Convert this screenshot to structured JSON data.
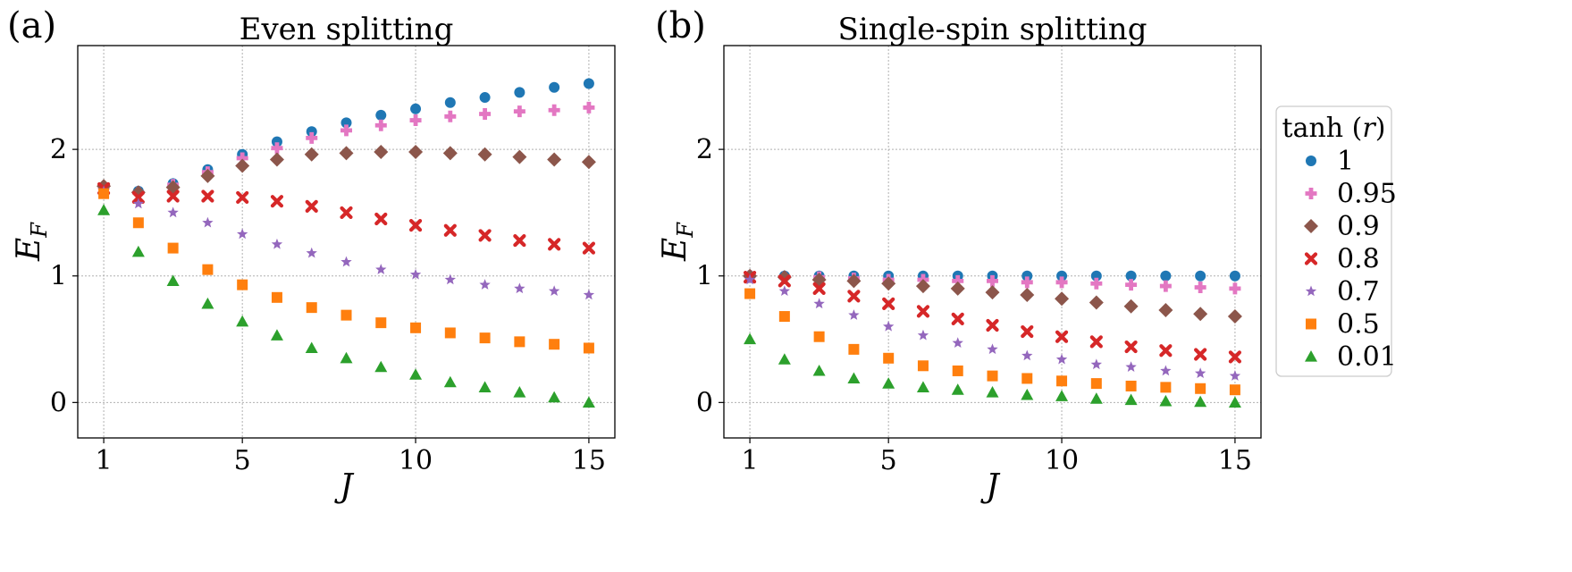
{
  "chart_data": [
    {
      "type": "scatter",
      "panel_label": "(a)",
      "title": "Even splitting",
      "xlabel": "J",
      "ylabel": "E_F",
      "xlim": [
        0.25,
        15.75
      ],
      "ylim": [
        -0.28,
        2.82
      ],
      "xticks": [
        1,
        5,
        10,
        15
      ],
      "yticks": [
        0,
        1,
        2
      ],
      "grid": true,
      "x": [
        1,
        2,
        3,
        4,
        5,
        6,
        7,
        8,
        9,
        10,
        11,
        12,
        13,
        14,
        15
      ],
      "series": [
        {
          "name": "1",
          "color": "#1f77b4",
          "marker": "circle",
          "values": [
            1.7,
            1.67,
            1.73,
            1.84,
            1.96,
            2.06,
            2.14,
            2.21,
            2.27,
            2.32,
            2.37,
            2.41,
            2.45,
            2.49,
            2.52
          ]
        },
        {
          "name": "0.95",
          "color": "#e377c2",
          "marker": "plus",
          "values": [
            1.7,
            1.66,
            1.72,
            1.82,
            1.93,
            2.01,
            2.09,
            2.15,
            2.19,
            2.23,
            2.26,
            2.28,
            2.3,
            2.31,
            2.33
          ]
        },
        {
          "name": "0.9",
          "color": "#8c564b",
          "marker": "diamond",
          "values": [
            1.71,
            1.66,
            1.7,
            1.79,
            1.87,
            1.92,
            1.96,
            1.97,
            1.98,
            1.98,
            1.97,
            1.96,
            1.94,
            1.92,
            1.9
          ]
        },
        {
          "name": "0.8",
          "color": "#d62728",
          "marker": "x",
          "values": [
            1.69,
            1.62,
            1.63,
            1.63,
            1.62,
            1.59,
            1.55,
            1.5,
            1.45,
            1.4,
            1.36,
            1.32,
            1.28,
            1.25,
            1.22
          ]
        },
        {
          "name": "0.7",
          "color": "#9467bd",
          "marker": "star",
          "values": [
            1.67,
            1.57,
            1.5,
            1.42,
            1.33,
            1.25,
            1.18,
            1.11,
            1.05,
            1.01,
            0.97,
            0.93,
            0.9,
            0.88,
            0.85
          ]
        },
        {
          "name": "0.5",
          "color": "#ff7f0e",
          "marker": "square",
          "values": [
            1.65,
            1.42,
            1.22,
            1.05,
            0.93,
            0.83,
            0.75,
            0.69,
            0.63,
            0.59,
            0.55,
            0.51,
            0.48,
            0.46,
            0.43
          ]
        },
        {
          "name": "0.01",
          "color": "#2ca02c",
          "marker": "triangle",
          "values": [
            1.52,
            1.19,
            0.96,
            0.78,
            0.64,
            0.53,
            0.43,
            0.35,
            0.28,
            0.22,
            0.16,
            0.12,
            0.08,
            0.04,
            0.0
          ]
        }
      ]
    },
    {
      "type": "scatter",
      "panel_label": "(b)",
      "title": "Single-spin splitting",
      "xlabel": "J",
      "ylabel": "E_F",
      "xlim": [
        0.25,
        15.75
      ],
      "ylim": [
        -0.28,
        2.82
      ],
      "xticks": [
        1,
        5,
        10,
        15
      ],
      "yticks": [
        0,
        1,
        2
      ],
      "grid": true,
      "x": [
        1,
        2,
        3,
        4,
        5,
        6,
        7,
        8,
        9,
        10,
        11,
        12,
        13,
        14,
        15
      ],
      "series": [
        {
          "name": "1",
          "color": "#1f77b4",
          "marker": "circle",
          "values": [
            1.0,
            1.0,
            1.0,
            1.0,
            1.0,
            1.0,
            1.0,
            1.0,
            1.0,
            1.0,
            1.0,
            1.0,
            1.0,
            1.0,
            1.0
          ]
        },
        {
          "name": "0.95",
          "color": "#e377c2",
          "marker": "plus",
          "values": [
            1.0,
            0.99,
            0.99,
            0.98,
            0.97,
            0.97,
            0.96,
            0.96,
            0.95,
            0.95,
            0.94,
            0.93,
            0.92,
            0.91,
            0.9
          ]
        },
        {
          "name": "0.9",
          "color": "#8c564b",
          "marker": "diamond",
          "values": [
            1.0,
            0.99,
            0.97,
            0.96,
            0.94,
            0.92,
            0.9,
            0.87,
            0.85,
            0.82,
            0.79,
            0.76,
            0.73,
            0.7,
            0.68
          ]
        },
        {
          "name": "0.8",
          "color": "#d62728",
          "marker": "x",
          "values": [
            0.99,
            0.96,
            0.9,
            0.84,
            0.78,
            0.72,
            0.66,
            0.61,
            0.56,
            0.52,
            0.48,
            0.44,
            0.41,
            0.38,
            0.36
          ]
        },
        {
          "name": "0.7",
          "color": "#9467bd",
          "marker": "star",
          "values": [
            0.97,
            0.88,
            0.78,
            0.69,
            0.6,
            0.53,
            0.47,
            0.42,
            0.37,
            0.34,
            0.3,
            0.28,
            0.25,
            0.23,
            0.21
          ]
        },
        {
          "name": "0.5",
          "color": "#ff7f0e",
          "marker": "square",
          "values": [
            0.86,
            0.68,
            0.52,
            0.42,
            0.35,
            0.29,
            0.25,
            0.21,
            0.19,
            0.17,
            0.15,
            0.13,
            0.12,
            0.11,
            0.1
          ]
        },
        {
          "name": "0.01",
          "color": "#2ca02c",
          "marker": "triangle",
          "values": [
            0.5,
            0.34,
            0.25,
            0.19,
            0.15,
            0.12,
            0.1,
            0.08,
            0.06,
            0.05,
            0.03,
            0.02,
            0.01,
            0.005,
            0.0
          ]
        }
      ]
    }
  ],
  "legend": {
    "title": "tanh (r)",
    "placement": "right",
    "entries": [
      {
        "label": "1",
        "color": "#1f77b4",
        "marker": "circle"
      },
      {
        "label": "0.95",
        "color": "#e377c2",
        "marker": "plus"
      },
      {
        "label": "0.9",
        "color": "#8c564b",
        "marker": "diamond"
      },
      {
        "label": "0.8",
        "color": "#d62728",
        "marker": "x"
      },
      {
        "label": "0.7",
        "color": "#9467bd",
        "marker": "star"
      },
      {
        "label": "0.5",
        "color": "#ff7f0e",
        "marker": "square"
      },
      {
        "label": "0.01",
        "color": "#2ca02c",
        "marker": "triangle"
      }
    ]
  }
}
